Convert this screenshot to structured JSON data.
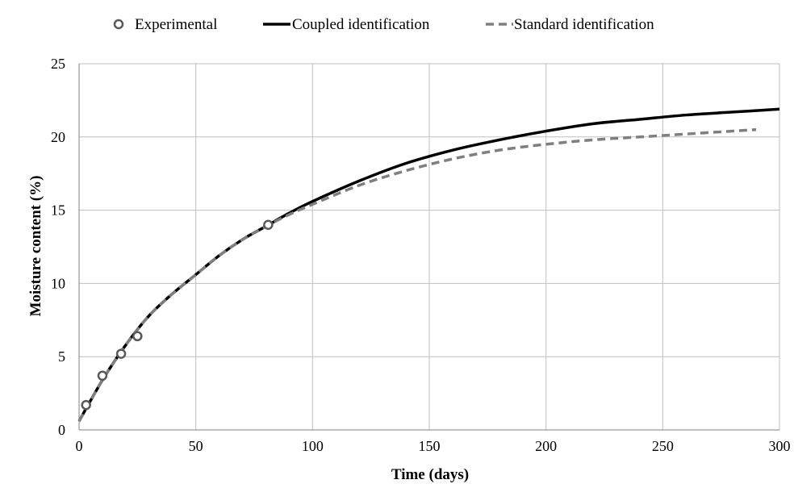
{
  "chart_data": {
    "type": "line",
    "title": "",
    "xlabel": "Time (days)",
    "ylabel": "Moisture content (%)",
    "xlim": [
      0,
      300
    ],
    "ylim": [
      0,
      25
    ],
    "xticks": [
      0,
      50,
      100,
      150,
      200,
      250,
      300
    ],
    "yticks": [
      0,
      5,
      10,
      15,
      20,
      25
    ],
    "grid": true,
    "legend_position": "top",
    "series": [
      {
        "name": "Experimental",
        "kind": "markers",
        "marker": "open-circle",
        "color": "#595959",
        "x": [
          3,
          10,
          18,
          25,
          81
        ],
        "y": [
          1.7,
          3.7,
          5.2,
          6.4,
          14.0
        ]
      },
      {
        "name": "Coupled identification",
        "kind": "solid-line",
        "color": "#000000",
        "x": [
          0,
          10,
          20,
          30,
          40,
          50,
          60,
          70,
          80,
          90,
          100,
          120,
          140,
          160,
          180,
          200,
          220,
          240,
          260,
          280,
          300
        ],
        "y": [
          0.6,
          3.4,
          5.8,
          7.8,
          9.3,
          10.6,
          11.9,
          13.0,
          13.9,
          14.8,
          15.6,
          17.0,
          18.2,
          19.1,
          19.8,
          20.4,
          20.9,
          21.2,
          21.5,
          21.7,
          21.9
        ]
      },
      {
        "name": "Standard identification",
        "kind": "dashed-line",
        "color": "#7f7f7f",
        "x": [
          0,
          10,
          20,
          30,
          40,
          50,
          60,
          70,
          80,
          90,
          100,
          120,
          140,
          160,
          180,
          200,
          220,
          240,
          260,
          280,
          290
        ],
        "y": [
          0.6,
          3.4,
          5.8,
          7.8,
          9.3,
          10.6,
          11.9,
          13.0,
          13.9,
          14.7,
          15.4,
          16.7,
          17.7,
          18.5,
          19.1,
          19.5,
          19.8,
          20.0,
          20.2,
          20.4,
          20.5
        ]
      }
    ]
  }
}
